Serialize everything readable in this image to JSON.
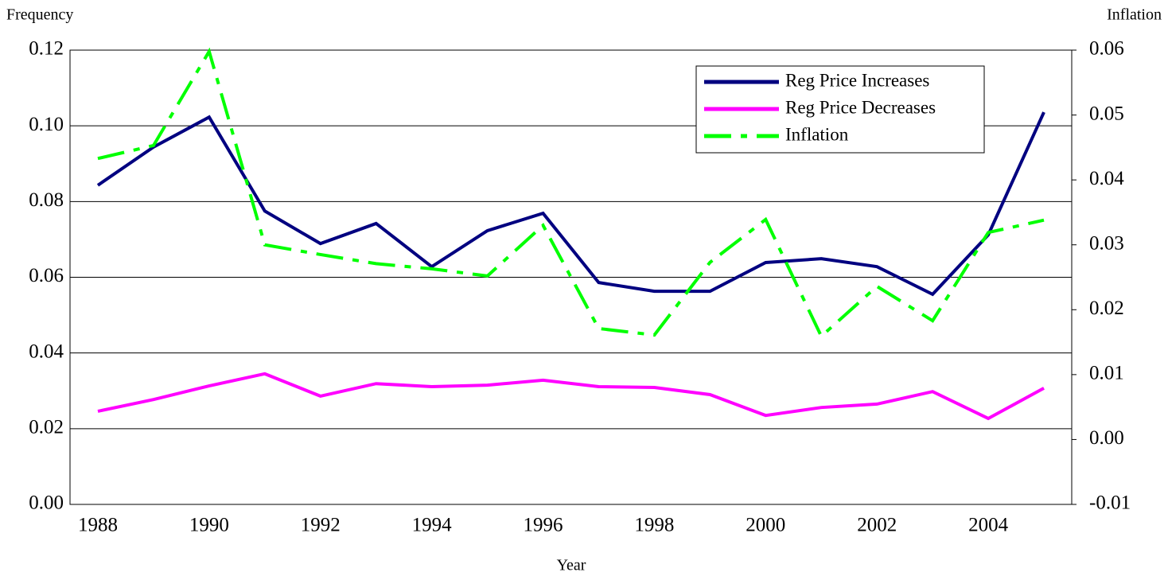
{
  "chart_data": {
    "type": "line",
    "y_label": "Frequency",
    "y2_label": "Inflation",
    "x_label": "Year",
    "categories": [
      "1988",
      null,
      "1990",
      null,
      "1992",
      null,
      "1994",
      null,
      "1996",
      null,
      "1998",
      null,
      "2000",
      null,
      "2002",
      null,
      "2004",
      null
    ],
    "series": [
      {
        "name": "Reg Price Increases",
        "color": "#000080",
        "linestyle": "solid",
        "values": [
          0.0843,
          0.0944,
          0.1023,
          0.0775,
          0.0689,
          0.0742,
          0.0628,
          0.0723,
          0.0769,
          0.0586,
          0.0563,
          0.0563,
          0.0639,
          0.0649,
          0.0628,
          0.0555,
          0.0712,
          0.1036
        ]
      },
      {
        "name": "Reg Price Decreases",
        "color": "#ff00ff",
        "linestyle": "solid",
        "values": [
          0.0246,
          0.0277,
          0.0313,
          0.0345,
          0.0286,
          0.0319,
          0.0311,
          0.0315,
          0.0328,
          0.0311,
          0.0309,
          0.029,
          0.0235,
          0.0256,
          0.0265,
          0.0298,
          0.0227,
          0.0307
        ]
      },
      {
        "name": "Inflation",
        "color": "#00ff00",
        "linestyle": "dashdot",
        "axis": "y2",
        "values": [
          0.0433,
          0.0453,
          0.0598,
          0.03,
          0.0285,
          0.0271,
          0.0263,
          0.0252,
          0.033,
          0.0171,
          0.0161,
          0.0273,
          0.0339,
          0.0159,
          0.0236,
          0.0183,
          0.0319,
          0.0338
        ]
      }
    ],
    "ylim": [
      0,
      0.12
    ],
    "yticks": [
      {
        "value": 0,
        "label": "0.00"
      },
      0.02,
      0.04,
      0.06,
      0.08,
      {
        "value": 0.1,
        "label": "0.10"
      },
      0.12
    ],
    "y2lim": [
      -0.01,
      0.06
    ],
    "y2ticks": [
      -0.01,
      {
        "value": 0,
        "label": "0.00"
      },
      0.01,
      0.02,
      0.03,
      0.04,
      0.05,
      0.06
    ],
    "grid": true,
    "legend": "upper right"
  }
}
